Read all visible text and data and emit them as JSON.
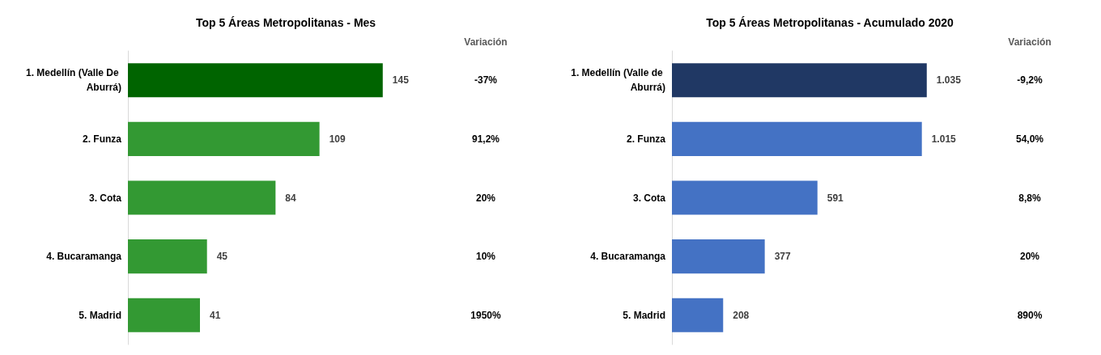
{
  "chart_data": [
    {
      "type": "bar",
      "orientation": "horizontal",
      "title": "Top 5 Áreas Metropolitanas - Mes",
      "categories": [
        "1. Medellín (Valle De Aburrá)",
        "2. Funza",
        "3. Cota",
        "4. Bucaramanga",
        "5. Madrid"
      ],
      "values": [
        145,
        109,
        84,
        45,
        41
      ],
      "colors": [
        "#006400",
        "#339933",
        "#339933",
        "#339933",
        "#339933"
      ],
      "data_labels": true,
      "annotations": [
        "Variación",
        "-37%",
        "91,2%",
        "20%",
        "10%",
        "1950%"
      ]
    },
    {
      "type": "bar",
      "orientation": "horizontal",
      "title": "Top 5 Áreas Metropolitanas - Acumulado 2020",
      "categories": [
        "1. Medellín (Valle de Aburrá)",
        "2. Funza",
        "3. Cota",
        "4. Bucaramanga",
        "5. Madrid"
      ],
      "values": [
        1035,
        1015,
        591,
        377,
        208
      ],
      "value_labels": [
        "1.035",
        "1.015",
        "591",
        "377",
        "208"
      ],
      "colors": [
        "#203864",
        "#4472c4",
        "#4472c4",
        "#4472c4",
        "#4472c4"
      ],
      "annotations": [
        "Variación",
        "-9,2%",
        "54,0%",
        "8,8%",
        "20%",
        "890%"
      ]
    }
  ]
}
